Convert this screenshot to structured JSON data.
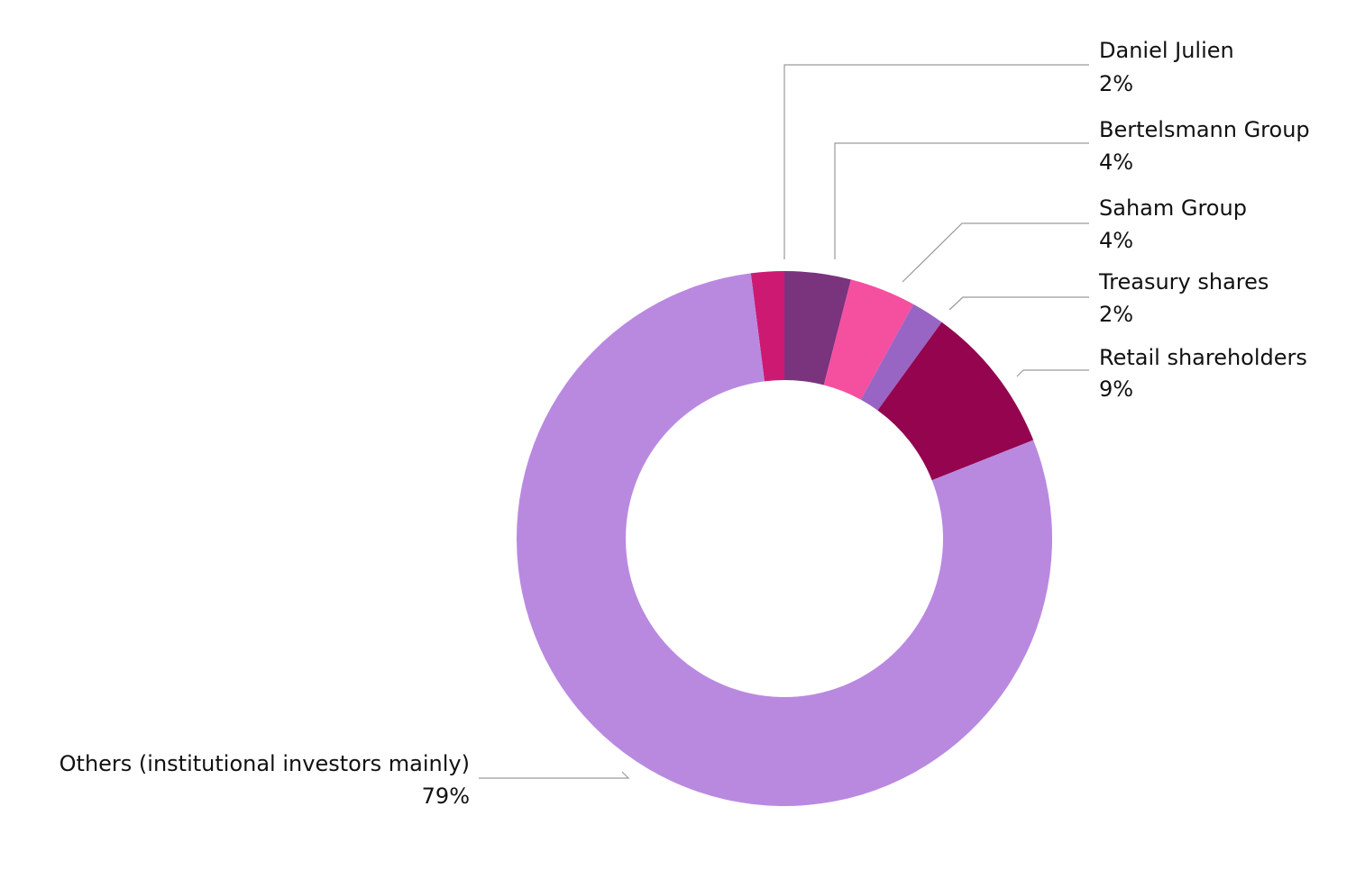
{
  "chart_data": {
    "type": "pie",
    "donut": true,
    "title": "",
    "slices": [
      {
        "label": "Daniel Julien",
        "value": 2,
        "value_label": "2%",
        "color": "#cc1a72"
      },
      {
        "label": "Bertelsmann Group",
        "value": 4,
        "value_label": "4%",
        "color": "#7a337d"
      },
      {
        "label": "Saham Group",
        "value": 4,
        "value_label": "4%",
        "color": "#f54fa0"
      },
      {
        "label": "Treasury shares",
        "value": 2,
        "value_label": "2%",
        "color": "#9965c4"
      },
      {
        "label": "Retail shareholders",
        "value": 9,
        "value_label": "9%",
        "color": "#94044f"
      },
      {
        "label": "Others (institutional investors mainly)",
        "value": 79,
        "value_label": "79%",
        "color": "#b989e0"
      }
    ]
  }
}
